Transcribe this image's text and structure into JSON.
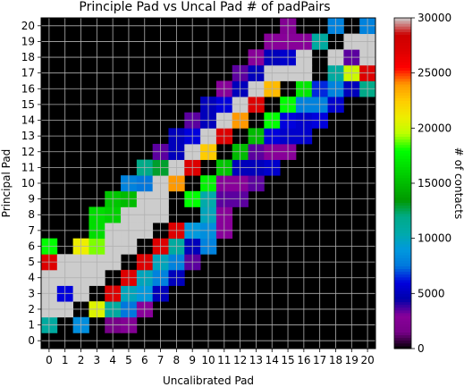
{
  "chart_data": {
    "type": "heatmap",
    "title": "Principle Pad vs Uncal Pad # of padPairs",
    "xlabel": "Uncalibrated Pad",
    "ylabel": "Principal Pad",
    "colorbar_label": "# of contacts",
    "colormap": "nipy_spectral",
    "x_ticks": [
      "0",
      "1",
      "2",
      "3",
      "4",
      "5",
      "6",
      "7",
      "8",
      "9",
      "10",
      "11",
      "12",
      "13",
      "14",
      "15",
      "16",
      "17",
      "18",
      "19",
      "20"
    ],
    "y_ticks": [
      "0",
      "1",
      "2",
      "3",
      "4",
      "5",
      "6",
      "7",
      "8",
      "9",
      "10",
      "11",
      "12",
      "13",
      "14",
      "15",
      "16",
      "17",
      "18",
      "19",
      "20"
    ],
    "colorbar_ticks": [
      "0",
      "5000",
      "10000",
      "15000",
      "20000",
      "25000",
      "30000"
    ],
    "zlim": [
      0,
      30000
    ],
    "grid": true,
    "cells": [
      {
        "x": 0,
        "y": 1,
        "v": 11000
      },
      {
        "x": 2,
        "y": 1,
        "v": 8500
      },
      {
        "x": 4,
        "y": 1,
        "v": 1500
      },
      {
        "x": 5,
        "y": 1,
        "v": 2500
      },
      {
        "x": 0,
        "y": 2,
        "v": 30000
      },
      {
        "x": 1,
        "y": 2,
        "v": 30000
      },
      {
        "x": 3,
        "y": 2,
        "v": 20500
      },
      {
        "x": 4,
        "y": 2,
        "v": 11000
      },
      {
        "x": 5,
        "y": 2,
        "v": 7500
      },
      {
        "x": 6,
        "y": 2,
        "v": 3000
      },
      {
        "x": 0,
        "y": 3,
        "v": 30000
      },
      {
        "x": 1,
        "y": 3,
        "v": 6000
      },
      {
        "x": 2,
        "y": 3,
        "v": 30000
      },
      {
        "x": 4,
        "y": 3,
        "v": 27000
      },
      {
        "x": 5,
        "y": 3,
        "v": 10000
      },
      {
        "x": 6,
        "y": 3,
        "v": 9000
      },
      {
        "x": 7,
        "y": 3,
        "v": 5000
      },
      {
        "x": 0,
        "y": 4,
        "v": 30000
      },
      {
        "x": 1,
        "y": 4,
        "v": 30000
      },
      {
        "x": 2,
        "y": 4,
        "v": 30000
      },
      {
        "x": 3,
        "y": 4,
        "v": 30000
      },
      {
        "x": 5,
        "y": 4,
        "v": 27000
      },
      {
        "x": 6,
        "y": 4,
        "v": 10000
      },
      {
        "x": 7,
        "y": 4,
        "v": 8000
      },
      {
        "x": 8,
        "y": 4,
        "v": 5000
      },
      {
        "x": 0,
        "y": 5,
        "v": 27000
      },
      {
        "x": 1,
        "y": 5,
        "v": 30000
      },
      {
        "x": 2,
        "y": 5,
        "v": 30000
      },
      {
        "x": 3,
        "y": 5,
        "v": 30000
      },
      {
        "x": 4,
        "y": 5,
        "v": 30000
      },
      {
        "x": 6,
        "y": 5,
        "v": 27000
      },
      {
        "x": 7,
        "y": 5,
        "v": 10000
      },
      {
        "x": 8,
        "y": 5,
        "v": 8000
      },
      {
        "x": 9,
        "y": 5,
        "v": 3500
      },
      {
        "x": 0,
        "y": 6,
        "v": 18000
      },
      {
        "x": 2,
        "y": 6,
        "v": 21000
      },
      {
        "x": 3,
        "y": 6,
        "v": 19000
      },
      {
        "x": 4,
        "y": 6,
        "v": 30000
      },
      {
        "x": 5,
        "y": 6,
        "v": 30000
      },
      {
        "x": 7,
        "y": 6,
        "v": 27000
      },
      {
        "x": 8,
        "y": 6,
        "v": 11000
      },
      {
        "x": 9,
        "y": 6,
        "v": 5000
      },
      {
        "x": 10,
        "y": 6,
        "v": 8000
      },
      {
        "x": 3,
        "y": 7,
        "v": 16500
      },
      {
        "x": 4,
        "y": 7,
        "v": 30000
      },
      {
        "x": 5,
        "y": 7,
        "v": 30000
      },
      {
        "x": 6,
        "y": 7,
        "v": 30000
      },
      {
        "x": 8,
        "y": 7,
        "v": 27000
      },
      {
        "x": 9,
        "y": 7,
        "v": 9000
      },
      {
        "x": 10,
        "y": 7,
        "v": 8500
      },
      {
        "x": 11,
        "y": 7,
        "v": 3000
      },
      {
        "x": 3,
        "y": 8,
        "v": 16500
      },
      {
        "x": 4,
        "y": 8,
        "v": 16000
      },
      {
        "x": 5,
        "y": 8,
        "v": 30000
      },
      {
        "x": 6,
        "y": 8,
        "v": 30000
      },
      {
        "x": 7,
        "y": 8,
        "v": 30000
      },
      {
        "x": 10,
        "y": 8,
        "v": 10000
      },
      {
        "x": 11,
        "y": 8,
        "v": 3000
      },
      {
        "x": 4,
        "y": 9,
        "v": 15500
      },
      {
        "x": 5,
        "y": 9,
        "v": 15000
      },
      {
        "x": 6,
        "y": 9,
        "v": 30000
      },
      {
        "x": 7,
        "y": 9,
        "v": 30000
      },
      {
        "x": 9,
        "y": 9,
        "v": 18000
      },
      {
        "x": 10,
        "y": 9,
        "v": 10500
      },
      {
        "x": 11,
        "y": 9,
        "v": 3500
      },
      {
        "x": 12,
        "y": 9,
        "v": 3500
      },
      {
        "x": 5,
        "y": 10,
        "v": 8000
      },
      {
        "x": 6,
        "y": 10,
        "v": 7500
      },
      {
        "x": 7,
        "y": 10,
        "v": 30000
      },
      {
        "x": 8,
        "y": 10,
        "v": 24000
      },
      {
        "x": 10,
        "y": 10,
        "v": 17500
      },
      {
        "x": 11,
        "y": 10,
        "v": 3000
      },
      {
        "x": 12,
        "y": 10,
        "v": 3000
      },
      {
        "x": 13,
        "y": 10,
        "v": 3500
      },
      {
        "x": 6,
        "y": 11,
        "v": 12000
      },
      {
        "x": 7,
        "y": 11,
        "v": 13000
      },
      {
        "x": 8,
        "y": 11,
        "v": 30000
      },
      {
        "x": 9,
        "y": 11,
        "v": 27000
      },
      {
        "x": 11,
        "y": 11,
        "v": 15500
      },
      {
        "x": 12,
        "y": 11,
        "v": 5000
      },
      {
        "x": 13,
        "y": 11,
        "v": 5000
      },
      {
        "x": 14,
        "y": 11,
        "v": 5500
      },
      {
        "x": 7,
        "y": 12,
        "v": 3500
      },
      {
        "x": 8,
        "y": 12,
        "v": 5000
      },
      {
        "x": 9,
        "y": 12,
        "v": 30000
      },
      {
        "x": 10,
        "y": 12,
        "v": 22500
      },
      {
        "x": 12,
        "y": 12,
        "v": 15000
      },
      {
        "x": 13,
        "y": 12,
        "v": 3500
      },
      {
        "x": 14,
        "y": 12,
        "v": 3000
      },
      {
        "x": 15,
        "y": 12,
        "v": 3000
      },
      {
        "x": 8,
        "y": 13,
        "v": 5000
      },
      {
        "x": 9,
        "y": 13,
        "v": 6000
      },
      {
        "x": 10,
        "y": 13,
        "v": 30000
      },
      {
        "x": 11,
        "y": 13,
        "v": 27000
      },
      {
        "x": 13,
        "y": 13,
        "v": 15000
      },
      {
        "x": 14,
        "y": 13,
        "v": 6000
      },
      {
        "x": 15,
        "y": 13,
        "v": 5500
      },
      {
        "x": 16,
        "y": 13,
        "v": 5500
      },
      {
        "x": 9,
        "y": 14,
        "v": 3500
      },
      {
        "x": 10,
        "y": 14,
        "v": 5000
      },
      {
        "x": 11,
        "y": 14,
        "v": 30000
      },
      {
        "x": 12,
        "y": 14,
        "v": 24000
      },
      {
        "x": 14,
        "y": 14,
        "v": 18000
      },
      {
        "x": 15,
        "y": 14,
        "v": 6000
      },
      {
        "x": 16,
        "y": 14,
        "v": 5500
      },
      {
        "x": 17,
        "y": 14,
        "v": 6000
      },
      {
        "x": 10,
        "y": 15,
        "v": 5000
      },
      {
        "x": 11,
        "y": 15,
        "v": 6000
      },
      {
        "x": 12,
        "y": 15,
        "v": 30000
      },
      {
        "x": 13,
        "y": 15,
        "v": 27000
      },
      {
        "x": 15,
        "y": 15,
        "v": 18000
      },
      {
        "x": 16,
        "y": 15,
        "v": 8000
      },
      {
        "x": 17,
        "y": 15,
        "v": 8000
      },
      {
        "x": 18,
        "y": 15,
        "v": 5500
      },
      {
        "x": 11,
        "y": 16,
        "v": 3000
      },
      {
        "x": 12,
        "y": 16,
        "v": 5000
      },
      {
        "x": 13,
        "y": 16,
        "v": 30000
      },
      {
        "x": 14,
        "y": 16,
        "v": 23000
      },
      {
        "x": 16,
        "y": 16,
        "v": 17000
      },
      {
        "x": 17,
        "y": 16,
        "v": 6500
      },
      {
        "x": 18,
        "y": 16,
        "v": 8000
      },
      {
        "x": 19,
        "y": 16,
        "v": 5000
      },
      {
        "x": 20,
        "y": 16,
        "v": 12000
      },
      {
        "x": 12,
        "y": 17,
        "v": 3500
      },
      {
        "x": 13,
        "y": 17,
        "v": 5000
      },
      {
        "x": 14,
        "y": 17,
        "v": 30000
      },
      {
        "x": 15,
        "y": 17,
        "v": 30000
      },
      {
        "x": 16,
        "y": 17,
        "v": 30000
      },
      {
        "x": 18,
        "y": 17,
        "v": 11000
      },
      {
        "x": 19,
        "y": 17,
        "v": 20000
      },
      {
        "x": 20,
        "y": 17,
        "v": 27000
      },
      {
        "x": 13,
        "y": 18,
        "v": 3000
      },
      {
        "x": 14,
        "y": 18,
        "v": 5000
      },
      {
        "x": 15,
        "y": 18,
        "v": 5500
      },
      {
        "x": 16,
        "y": 18,
        "v": 30000
      },
      {
        "x": 18,
        "y": 18,
        "v": 30000
      },
      {
        "x": 19,
        "y": 18,
        "v": 3500
      },
      {
        "x": 20,
        "y": 18,
        "v": 30000
      },
      {
        "x": 14,
        "y": 19,
        "v": 3000
      },
      {
        "x": 15,
        "y": 19,
        "v": 3000
      },
      {
        "x": 16,
        "y": 19,
        "v": 3000
      },
      {
        "x": 17,
        "y": 19,
        "v": 11000
      },
      {
        "x": 19,
        "y": 19,
        "v": 30000
      },
      {
        "x": 20,
        "y": 19,
        "v": 30000
      },
      {
        "x": 15,
        "y": 20,
        "v": 2500
      },
      {
        "x": 18,
        "y": 20,
        "v": 8000
      },
      {
        "x": 20,
        "y": 20,
        "v": 8000
      }
    ]
  }
}
